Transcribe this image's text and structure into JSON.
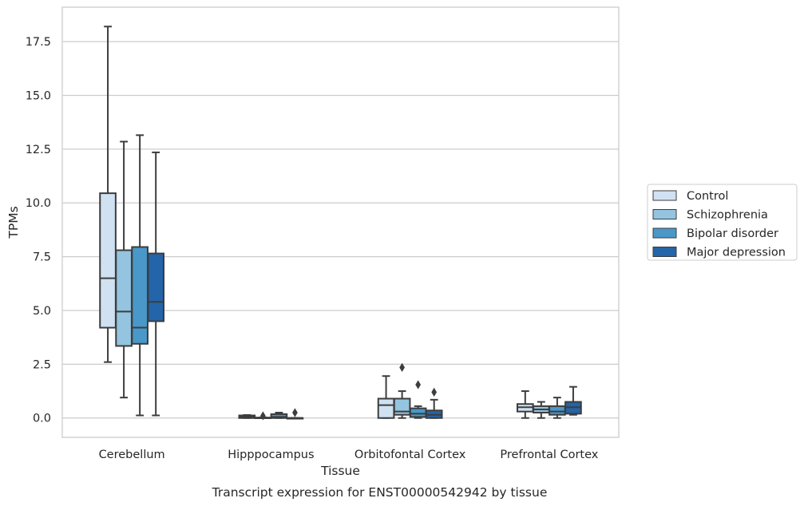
{
  "chart_data": {
    "type": "box",
    "xlabel": "Tissue",
    "ylabel": "TPMs",
    "caption": "Transcript expression for ENST00000542942 by tissue",
    "ylim": [
      -0.9,
      19.1
    ],
    "yticks": [
      "0.0",
      "2.5",
      "5.0",
      "7.5",
      "10.0",
      "12.5",
      "15.0",
      "17.5"
    ],
    "ytick_values": [
      0,
      2.5,
      5,
      7.5,
      10,
      12.5,
      15,
      17.5
    ],
    "grid": "horizontal",
    "legend_position": "right-center",
    "categories": [
      "Cerebellum",
      "Hipppocampus",
      "Orbitofontal Cortex",
      "Prefrontal Cortex"
    ],
    "series": [
      {
        "name": "Control",
        "color": "#d0e1f2",
        "boxes": [
          {
            "whislo": 2.6,
            "q1": 4.2,
            "med": 6.5,
            "q3": 10.45,
            "whishi": 18.2,
            "fliers": []
          },
          {
            "whislo": 0.0,
            "q1": 0.0,
            "med": 0.05,
            "q3": 0.12,
            "whishi": 0.14,
            "fliers": []
          },
          {
            "whislo": 0.0,
            "q1": 0.0,
            "med": 0.6,
            "q3": 0.9,
            "whishi": 1.95,
            "fliers": []
          },
          {
            "whislo": 0.0,
            "q1": 0.3,
            "med": 0.5,
            "q3": 0.65,
            "whishi": 1.25,
            "fliers": []
          }
        ]
      },
      {
        "name": "Schizophrenia",
        "color": "#94c4df",
        "boxes": [
          {
            "whislo": 0.95,
            "q1": 3.35,
            "med": 4.95,
            "q3": 7.8,
            "whishi": 12.85,
            "fliers": []
          },
          {
            "whislo": 0.0,
            "q1": 0.0,
            "med": 0.0,
            "q3": 0.02,
            "whishi": 0.03,
            "fliers": [
              0.1
            ]
          },
          {
            "whislo": 0.0,
            "q1": 0.15,
            "med": 0.3,
            "q3": 0.9,
            "whishi": 1.25,
            "fliers": [
              2.35
            ]
          },
          {
            "whislo": 0.0,
            "q1": 0.25,
            "med": 0.4,
            "q3": 0.55,
            "whishi": 0.75,
            "fliers": []
          }
        ]
      },
      {
        "name": "Bipolar disorder",
        "color": "#4a98c9",
        "boxes": [
          {
            "whislo": 0.12,
            "q1": 3.45,
            "med": 4.2,
            "q3": 7.95,
            "whishi": 13.15,
            "fliers": []
          },
          {
            "whislo": 0.0,
            "q1": 0.0,
            "med": 0.05,
            "q3": 0.18,
            "whishi": 0.25,
            "fliers": []
          },
          {
            "whislo": 0.0,
            "q1": 0.05,
            "med": 0.2,
            "q3": 0.45,
            "whishi": 0.55,
            "fliers": [
              1.55
            ]
          },
          {
            "whislo": 0.0,
            "q1": 0.15,
            "med": 0.3,
            "q3": 0.55,
            "whishi": 0.95,
            "fliers": []
          }
        ]
      },
      {
        "name": "Major depression",
        "color": "#2464a8",
        "boxes": [
          {
            "whislo": 0.12,
            "q1": 4.5,
            "med": 5.4,
            "q3": 7.65,
            "whishi": 12.35,
            "fliers": []
          },
          {
            "whislo": 0.0,
            "q1": 0.0,
            "med": 0.0,
            "q3": 0.0,
            "whishi": 0.0,
            "fliers": [
              0.25
            ]
          },
          {
            "whislo": 0.0,
            "q1": 0.0,
            "med": 0.15,
            "q3": 0.35,
            "whishi": 0.85,
            "fliers": [
              1.2
            ]
          },
          {
            "whislo": 0.15,
            "q1": 0.2,
            "med": 0.5,
            "q3": 0.75,
            "whishi": 1.45,
            "fliers": []
          }
        ]
      }
    ]
  }
}
